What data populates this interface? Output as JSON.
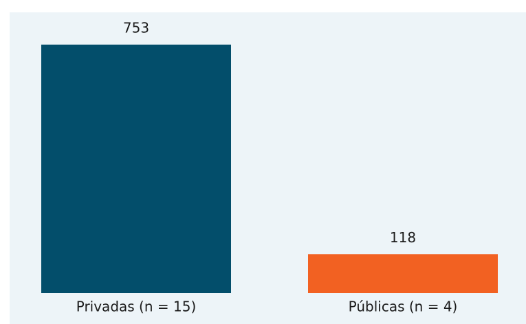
{
  "chart_data": {
    "type": "bar",
    "categories": [
      "Privadas (n = 15)",
      "Públicas (n = 4)"
    ],
    "values": [
      753,
      118
    ],
    "colors": [
      "#034e6b",
      "#f26122"
    ]
  }
}
